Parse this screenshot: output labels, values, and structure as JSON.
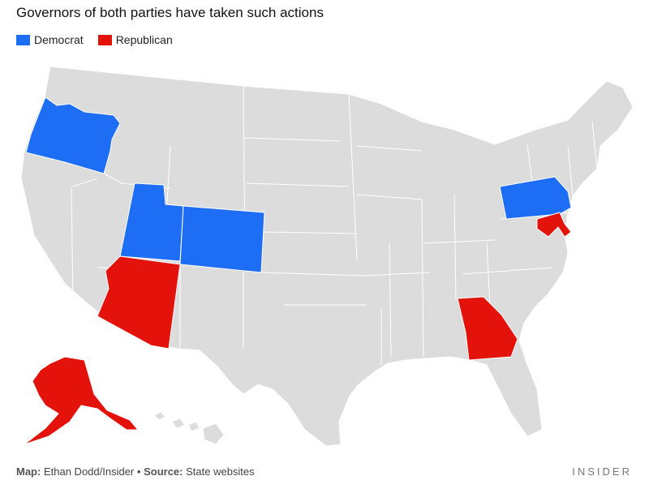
{
  "title": "Governors of both parties have taken such actions",
  "legend": [
    {
      "label": "Democrat",
      "color": "#1E6EF5"
    },
    {
      "label": "Republican",
      "color": "#E3120B"
    }
  ],
  "colors": {
    "base": "#DCDCDC",
    "border": "#FFFFFF"
  },
  "highlighted_states": {
    "Democrat": [
      "Oregon",
      "Utah",
      "Colorado",
      "Pennsylvania"
    ],
    "Republican": [
      "Arizona",
      "Georgia",
      "Maryland",
      "Alaska"
    ]
  },
  "footer": {
    "map_label": "Map:",
    "map_credit": "Ethan Dodd/Insider",
    "separator": "•",
    "source_label": "Source:",
    "source_text": "State websites"
  },
  "brand": "INSIDER"
}
